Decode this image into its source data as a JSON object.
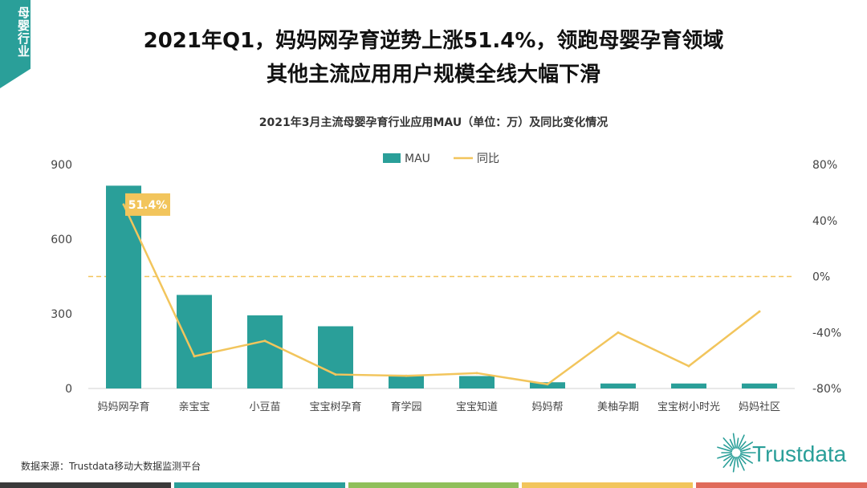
{
  "side_tag": "母婴行业",
  "title_line1": "2021年Q1，妈妈网孕育逆势上涨51.4%，领跑母婴孕育领域",
  "title_line2": "其他主流应用用户规模全线大幅下滑",
  "source": "数据来源：Trustdata移动大数据监测平台",
  "logo_text": "Trustdata",
  "colors": {
    "bar": "#2a9f99",
    "line": "#f2c55c",
    "zero_line": "#f2c55c",
    "callout_bg": "#f2c55c",
    "bottom_bar": [
      "#3a3a3a",
      "#2a9f99",
      "#8fbf5a",
      "#f2c55c",
      "#e06a5a"
    ]
  },
  "chart_data": {
    "type": "bar",
    "title": "2021年3月主流母婴孕育行业应用MAU（单位：万）及同比变化情况",
    "categories": [
      "妈妈网孕育",
      "亲宝宝",
      "小豆苗",
      "宝宝树孕育",
      "育学园",
      "宝宝知道",
      "妈妈帮",
      "美柚孕期",
      "宝宝树小时光",
      "妈妈社区"
    ],
    "series": [
      {
        "name": "MAU",
        "type": "bar",
        "axis": "left",
        "values": [
          815,
          376,
          294,
          250,
          55,
          50,
          25,
          20,
          20,
          20
        ]
      },
      {
        "name": "同比",
        "type": "line",
        "axis": "right",
        "values": [
          51.4,
          -57,
          -46,
          -70,
          -71,
          -69,
          -77,
          -40,
          -64,
          -25
        ]
      }
    ],
    "y_left": {
      "min": 0,
      "max": 900,
      "ticks": [
        0,
        300,
        600,
        900
      ]
    },
    "y_right": {
      "min": -80,
      "max": 80,
      "ticks": [
        -80,
        -40,
        0,
        40,
        80
      ],
      "tick_suffix": "%"
    },
    "callout": {
      "index": 0,
      "label": "51.4%"
    },
    "legend_position": "top-center"
  }
}
